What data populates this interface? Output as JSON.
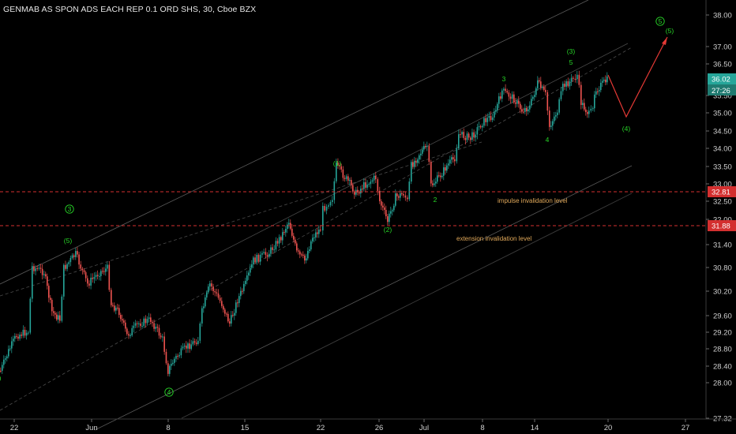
{
  "header": {
    "title": "GENMAB AS SPON ADS EACH REP 0.1 ORD SHS, 30, Cboe BZX"
  },
  "colors": {
    "background": "#000000",
    "up_candle": "#26a69a",
    "down_candle": "#ef5350",
    "level_line": "#d32f2f",
    "wave_label": "#27d627",
    "projection": "#e53935",
    "note_text": "#e0a85a",
    "last_price_bg": "#26a69a"
  },
  "price_axis": {
    "ticks": [
      "38.00",
      "37.00",
      "36.50",
      "35.50",
      "35.00",
      "34.50",
      "34.00",
      "33.50",
      "33.00",
      "32.50",
      "32.00",
      "31.40",
      "30.80",
      "30.20",
      "29.60",
      "29.20",
      "28.80",
      "28.40",
      "28.00",
      "27.32"
    ],
    "tick_values": [
      38.0,
      37.0,
      36.5,
      35.5,
      35.0,
      34.5,
      34.0,
      33.5,
      33.0,
      32.5,
      32.0,
      31.4,
      30.8,
      30.2,
      29.6,
      29.2,
      28.8,
      28.4,
      28.0,
      27.32
    ],
    "current_price_label": "36.02",
    "countdown_label": "27:26",
    "impulse_level_label": "32.81",
    "extension_level_label": "31.88"
  },
  "time_axis": {
    "labels": [
      "22",
      "Jun",
      "8",
      "15",
      "22",
      "26",
      "Jul",
      "8",
      "14",
      "20",
      "27"
    ]
  },
  "levels": [
    {
      "name": "impulse invalidation level",
      "price": 32.81,
      "text": "impulse invalidation level"
    },
    {
      "name": "extension invalidation level",
      "price": 31.88,
      "text": "extension invalidation level"
    }
  ],
  "wave_labels": [
    {
      "text": ")"
    },
    {
      "text": "(5)"
    },
    {
      "text": "3"
    },
    {
      "text": "4"
    },
    {
      "text": "(1)"
    },
    {
      "text": "(2)"
    },
    {
      "text": "2"
    },
    {
      "text": "3"
    },
    {
      "text": "(3)"
    },
    {
      "text": "5"
    },
    {
      "text": "4"
    },
    {
      "text": "(4)"
    },
    {
      "text": "5"
    },
    {
      "text": "(5)"
    }
  ]
}
